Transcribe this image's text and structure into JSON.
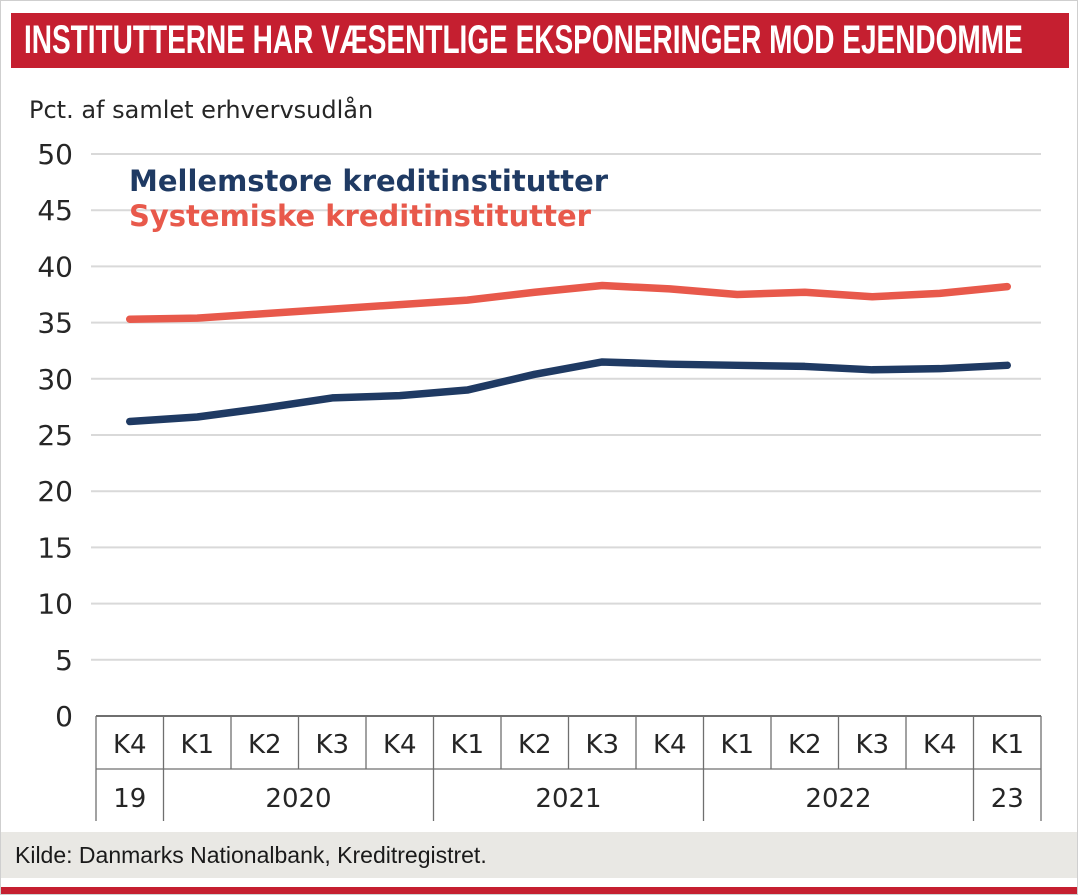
{
  "banner": {
    "title": "INSTITUTTERNE HAR VÆSENTLIGE EKSPONERINGER MOD EJENDOMME"
  },
  "theme": {
    "accent_red": "#c51f30",
    "source_bar_bg": "#e9e8e4",
    "text": "#262626"
  },
  "chart_data": {
    "type": "line",
    "unit_label": "Pct. af samlet erhvervsudlån",
    "x": [
      "K4",
      "K1",
      "K2",
      "K3",
      "K4",
      "K1",
      "K2",
      "K3",
      "K4",
      "K1",
      "K2",
      "K3",
      "K4",
      "K1"
    ],
    "year_groups": [
      {
        "label": "19",
        "span": 1
      },
      {
        "label": "2020",
        "span": 4
      },
      {
        "label": "2021",
        "span": 4
      },
      {
        "label": "2022",
        "span": 4
      },
      {
        "label": "23",
        "span": 1
      }
    ],
    "ylim": [
      0,
      50
    ],
    "ytick_step": 5,
    "grid": true,
    "legend_position": "top-left-inside",
    "colors": {
      "grid": "#d9d9d9",
      "axis": "#6f6f6f",
      "text": "#262626"
    },
    "series": [
      {
        "name": "Mellemstore kreditinstitutter",
        "color": "#1f3a63",
        "values": [
          26.2,
          26.6,
          27.4,
          28.3,
          28.5,
          29.0,
          30.4,
          31.5,
          31.3,
          31.2,
          31.1,
          30.8,
          30.9,
          31.2
        ]
      },
      {
        "name": "Systemiske kreditinstitutter",
        "color": "#e8594b",
        "values": [
          35.3,
          35.4,
          35.8,
          36.2,
          36.6,
          37.0,
          37.7,
          38.3,
          38.0,
          37.5,
          37.7,
          37.3,
          37.6,
          38.2
        ]
      }
    ]
  },
  "source": {
    "label": "Kilde: Danmarks Nationalbank, Kreditregistret."
  }
}
